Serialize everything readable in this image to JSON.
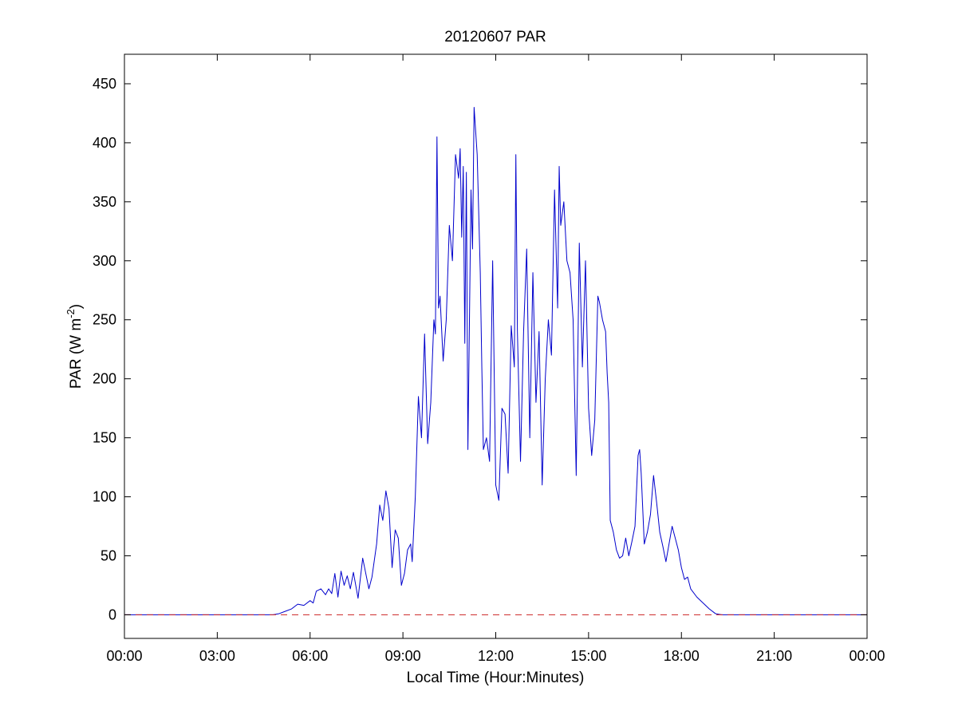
{
  "chart_data": {
    "type": "line",
    "title": "20120607 PAR",
    "xlabel": "Local Time (Hour:Minutes)",
    "ylabel": {
      "main": "PAR (W m",
      "sup": "-2",
      "close": ")"
    },
    "xlim": [
      0,
      24
    ],
    "ylim": [
      -20,
      475
    ],
    "x_ticks": [
      0,
      3,
      6,
      9,
      12,
      15,
      18,
      21,
      24
    ],
    "x_tick_labels": [
      "00:00",
      "03:00",
      "06:00",
      "09:00",
      "12:00",
      "15:00",
      "18:00",
      "21:00",
      "00:00"
    ],
    "y_ticks": [
      0,
      50,
      100,
      150,
      200,
      250,
      300,
      350,
      400,
      450
    ],
    "y_tick_labels": [
      "0",
      "50",
      "100",
      "150",
      "200",
      "250",
      "300",
      "350",
      "400",
      "450"
    ],
    "grid": false,
    "series": [
      {
        "line_color": "#0000cc",
        "line_style": "solid",
        "points": [
          [
            0,
            0
          ],
          [
            4.8,
            0
          ],
          [
            5.0,
            1
          ],
          [
            5.2,
            3
          ],
          [
            5.4,
            5
          ],
          [
            5.6,
            9
          ],
          [
            5.8,
            8
          ],
          [
            6.0,
            12
          ],
          [
            6.1,
            10
          ],
          [
            6.2,
            20
          ],
          [
            6.35,
            22
          ],
          [
            6.5,
            17
          ],
          [
            6.6,
            22
          ],
          [
            6.7,
            18
          ],
          [
            6.8,
            35
          ],
          [
            6.9,
            15
          ],
          [
            7.0,
            37
          ],
          [
            7.1,
            25
          ],
          [
            7.2,
            33
          ],
          [
            7.3,
            22
          ],
          [
            7.4,
            36
          ],
          [
            7.55,
            14
          ],
          [
            7.7,
            48
          ],
          [
            7.8,
            35
          ],
          [
            7.9,
            22
          ],
          [
            8.0,
            32
          ],
          [
            8.15,
            60
          ],
          [
            8.25,
            93
          ],
          [
            8.35,
            80
          ],
          [
            8.45,
            105
          ],
          [
            8.55,
            90
          ],
          [
            8.65,
            40
          ],
          [
            8.75,
            72
          ],
          [
            8.85,
            65
          ],
          [
            8.95,
            25
          ],
          [
            9.05,
            35
          ],
          [
            9.15,
            55
          ],
          [
            9.25,
            60
          ],
          [
            9.3,
            45
          ],
          [
            9.4,
            100
          ],
          [
            9.5,
            185
          ],
          [
            9.6,
            150
          ],
          [
            9.7,
            238
          ],
          [
            9.8,
            145
          ],
          [
            9.9,
            180
          ],
          [
            10.0,
            250
          ],
          [
            10.05,
            238
          ],
          [
            10.1,
            405
          ],
          [
            10.15,
            260
          ],
          [
            10.2,
            270
          ],
          [
            10.3,
            215
          ],
          [
            10.4,
            250
          ],
          [
            10.5,
            330
          ],
          [
            10.6,
            300
          ],
          [
            10.7,
            390
          ],
          [
            10.8,
            370
          ],
          [
            10.85,
            395
          ],
          [
            10.9,
            320
          ],
          [
            10.95,
            380
          ],
          [
            11.0,
            230
          ],
          [
            11.05,
            375
          ],
          [
            11.1,
            140
          ],
          [
            11.2,
            360
          ],
          [
            11.25,
            310
          ],
          [
            11.3,
            430
          ],
          [
            11.4,
            390
          ],
          [
            11.5,
            290
          ],
          [
            11.55,
            210
          ],
          [
            11.6,
            140
          ],
          [
            11.7,
            150
          ],
          [
            11.8,
            130
          ],
          [
            11.9,
            300
          ],
          [
            12.0,
            110
          ],
          [
            12.1,
            97
          ],
          [
            12.2,
            175
          ],
          [
            12.3,
            170
          ],
          [
            12.4,
            120
          ],
          [
            12.5,
            245
          ],
          [
            12.6,
            210
          ],
          [
            12.65,
            390
          ],
          [
            12.7,
            240
          ],
          [
            12.8,
            130
          ],
          [
            12.9,
            240
          ],
          [
            13.0,
            310
          ],
          [
            13.1,
            150
          ],
          [
            13.2,
            290
          ],
          [
            13.3,
            180
          ],
          [
            13.4,
            240
          ],
          [
            13.5,
            110
          ],
          [
            13.6,
            200
          ],
          [
            13.7,
            250
          ],
          [
            13.8,
            220
          ],
          [
            13.9,
            360
          ],
          [
            14.0,
            260
          ],
          [
            14.05,
            380
          ],
          [
            14.1,
            330
          ],
          [
            14.2,
            350
          ],
          [
            14.3,
            300
          ],
          [
            14.4,
            290
          ],
          [
            14.5,
            250
          ],
          [
            14.6,
            118
          ],
          [
            14.7,
            315
          ],
          [
            14.8,
            210
          ],
          [
            14.9,
            300
          ],
          [
            15.0,
            175
          ],
          [
            15.1,
            135
          ],
          [
            15.2,
            165
          ],
          [
            15.3,
            270
          ],
          [
            15.35,
            265
          ],
          [
            15.45,
            250
          ],
          [
            15.55,
            240
          ],
          [
            15.6,
            205
          ],
          [
            15.65,
            180
          ],
          [
            15.7,
            80
          ],
          [
            15.8,
            70
          ],
          [
            15.9,
            55
          ],
          [
            16.0,
            48
          ],
          [
            16.1,
            50
          ],
          [
            16.2,
            65
          ],
          [
            16.3,
            50
          ],
          [
            16.4,
            62
          ],
          [
            16.5,
            75
          ],
          [
            16.6,
            135
          ],
          [
            16.65,
            140
          ],
          [
            16.7,
            120
          ],
          [
            16.8,
            60
          ],
          [
            16.9,
            70
          ],
          [
            17.0,
            85
          ],
          [
            17.1,
            118
          ],
          [
            17.2,
            95
          ],
          [
            17.3,
            70
          ],
          [
            17.4,
            58
          ],
          [
            17.5,
            45
          ],
          [
            17.6,
            60
          ],
          [
            17.7,
            75
          ],
          [
            17.8,
            65
          ],
          [
            17.9,
            55
          ],
          [
            18.0,
            40
          ],
          [
            18.1,
            30
          ],
          [
            18.2,
            32
          ],
          [
            18.3,
            22
          ],
          [
            18.5,
            15
          ],
          [
            18.7,
            10
          ],
          [
            18.9,
            5
          ],
          [
            19.1,
            1
          ],
          [
            19.3,
            0
          ],
          [
            24,
            0
          ]
        ]
      },
      {
        "line_color": "#cc2222",
        "line_style": "dashed",
        "points": [
          [
            0,
            0
          ],
          [
            24,
            0
          ]
        ]
      }
    ]
  }
}
